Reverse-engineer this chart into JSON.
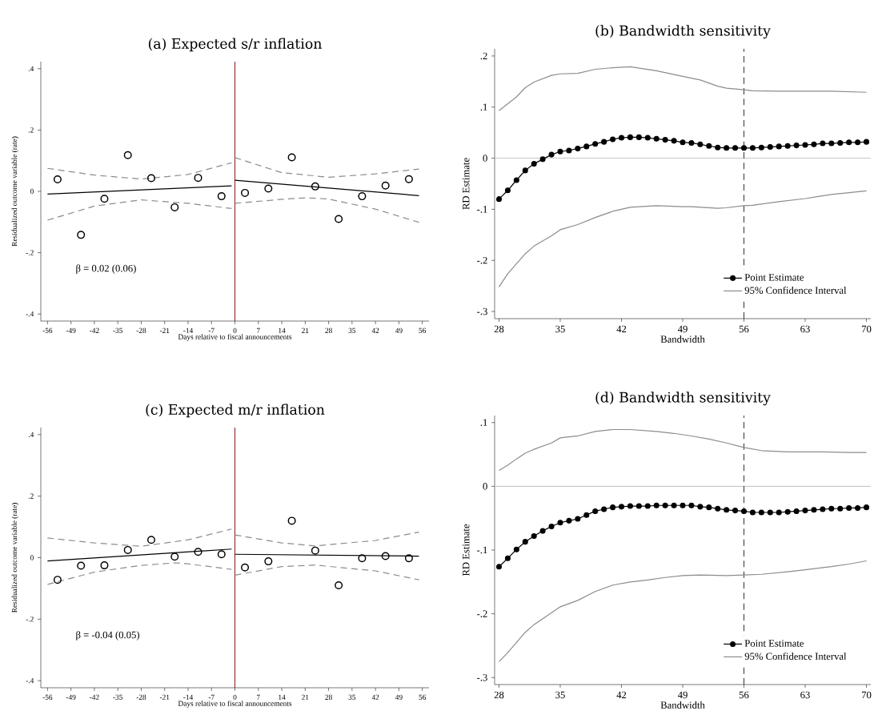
{
  "chart_data": [
    {
      "type": "scatter",
      "title": "(a) Expected s/r inflation",
      "xlabel": "Days relative to fiscal announcements",
      "ylabel": "Residualized outcome variable (rate)",
      "xlim": [
        -58,
        58
      ],
      "ylim": [
        -0.423,
        0.423
      ],
      "xticks": [
        -56,
        -49,
        -42,
        -35,
        -28,
        -21,
        -14,
        -7,
        0,
        7,
        14,
        21,
        28,
        35,
        42,
        49,
        56
      ],
      "yticks": [
        {
          "value": -0.4,
          "label": "-.4"
        },
        {
          "value": -0.2,
          "label": "-.2"
        },
        0,
        {
          "value": 0.2,
          "label": ".2"
        },
        {
          "value": 0.4,
          "label": ".4"
        }
      ],
      "grid": false,
      "legend": false,
      "annotations": [
        "β = 0.02 (0.06)"
      ],
      "ref_lines": [
        {
          "axis": "x",
          "value": 0,
          "color": "#8b2323"
        }
      ],
      "series": [
        {
          "type": "scatter",
          "marker": "circle",
          "color": "#000000",
          "x": [
            -53,
            -46,
            -39,
            -32,
            -25,
            -18,
            -11,
            -4,
            3,
            10,
            17,
            24,
            31,
            38,
            45,
            52
          ],
          "values": [
            0.039,
            -0.142,
            -0.024,
            0.118,
            0.043,
            -0.052,
            0.044,
            -0.016,
            -0.005,
            0.009,
            0.111,
            0.016,
            -0.09,
            -0.016,
            0.019,
            0.04
          ]
        },
        {
          "type": "line",
          "marker": "none",
          "line_style": "solid",
          "color": "#000000",
          "x": [
            -56,
            -1
          ],
          "values": [
            -0.009,
            0.018
          ]
        },
        {
          "type": "line",
          "marker": "none",
          "line_style": "solid",
          "color": "#000000",
          "x": [
            0,
            55
          ],
          "values": [
            0.036,
            -0.014
          ]
        },
        {
          "type": "line",
          "marker": "none",
          "line_style": "dashed",
          "color": "#8c8c8c",
          "x": [
            -56,
            -42,
            -28,
            -14,
            -1
          ],
          "values": [
            0.075,
            0.053,
            0.04,
            0.055,
            0.093
          ]
        },
        {
          "type": "line",
          "marker": "none",
          "line_style": "dashed",
          "color": "#8c8c8c",
          "x": [
            -56,
            -42,
            -28,
            -14,
            -1
          ],
          "values": [
            -0.094,
            -0.048,
            -0.028,
            -0.039,
            -0.056
          ]
        },
        {
          "type": "line",
          "marker": "none",
          "line_style": "dashed",
          "color": "#8c8c8c",
          "x": [
            0,
            14,
            28,
            42,
            55
          ],
          "values": [
            0.11,
            0.061,
            0.046,
            0.057,
            0.073
          ]
        },
        {
          "type": "line",
          "marker": "none",
          "line_style": "dashed",
          "color": "#8c8c8c",
          "x": [
            0,
            14,
            21,
            28,
            42,
            55
          ],
          "values": [
            -0.039,
            -0.026,
            -0.021,
            -0.025,
            -0.058,
            -0.101
          ]
        }
      ]
    },
    {
      "type": "line",
      "title": "(b) Bandwidth sensitivity",
      "xlabel": "Bandwidth",
      "ylabel": "RD Estimate",
      "xlim": [
        27.5,
        70.5
      ],
      "ylim": [
        -0.314,
        0.214
      ],
      "xticks": [
        28,
        35,
        42,
        49,
        56,
        63,
        70
      ],
      "yticks": [
        {
          "value": -0.3,
          "label": "-.3"
        },
        {
          "value": -0.2,
          "label": "-.2"
        },
        {
          "value": -0.1,
          "label": "-.1"
        },
        0,
        {
          "value": 0.1,
          "label": ".1"
        },
        {
          "value": 0.2,
          "label": ".2"
        }
      ],
      "grid": false,
      "legend": "bottom right",
      "ref_lines": [
        {
          "axis": "y",
          "value": 0,
          "color": "#c8c8c8",
          "line_style": "solid"
        },
        {
          "axis": "x",
          "value": 56,
          "color": "#333333",
          "line_style": "dashed"
        }
      ],
      "series": [
        {
          "name": "Point Estimate",
          "marker": "circle",
          "line_style": "solid",
          "color": "#000000",
          "x": [
            28,
            29,
            30,
            31,
            32,
            33,
            34,
            35,
            36,
            37,
            38,
            39,
            40,
            41,
            42,
            43,
            44,
            45,
            46,
            47,
            48,
            49,
            50,
            51,
            52,
            53,
            54,
            55,
            56,
            57,
            58,
            59,
            60,
            61,
            62,
            63,
            64,
            65,
            66,
            67,
            68,
            69,
            70
          ],
          "values": [
            -0.08,
            -0.063,
            -0.043,
            -0.024,
            -0.011,
            -0.002,
            0.007,
            0.013,
            0.015,
            0.019,
            0.023,
            0.028,
            0.032,
            0.037,
            0.04,
            0.041,
            0.041,
            0.04,
            0.038,
            0.036,
            0.034,
            0.031,
            0.03,
            0.027,
            0.024,
            0.021,
            0.02,
            0.02,
            0.02,
            0.02,
            0.021,
            0.022,
            0.023,
            0.024,
            0.025,
            0.026,
            0.027,
            0.029,
            0.029,
            0.03,
            0.031,
            0.031,
            0.032
          ]
        },
        {
          "name": "95% Confidence Interval",
          "marker": "none",
          "line_style": "solid",
          "color": "#8c8c8c",
          "x": [
            28,
            30,
            31,
            32,
            34,
            35,
            37,
            39,
            41,
            43,
            46,
            49,
            51,
            53,
            54,
            56,
            57,
            60,
            63,
            66,
            70
          ],
          "values": [
            0.093,
            0.12,
            0.138,
            0.149,
            0.162,
            0.165,
            0.166,
            0.174,
            0.177,
            0.179,
            0.171,
            0.16,
            0.153,
            0.141,
            0.137,
            0.134,
            0.132,
            0.131,
            0.131,
            0.131,
            0.129
          ]
        },
        {
          "marker": "none",
          "line_style": "solid",
          "color": "#8c8c8c",
          "x": [
            28,
            29,
            31,
            32,
            34,
            35,
            37,
            39,
            41,
            43,
            46,
            49,
            50,
            53,
            54,
            56,
            57,
            60,
            63,
            66,
            70
          ],
          "values": [
            -0.252,
            -0.226,
            -0.187,
            -0.172,
            -0.152,
            -0.14,
            -0.13,
            -0.116,
            -0.104,
            -0.096,
            -0.093,
            -0.095,
            -0.095,
            -0.098,
            -0.097,
            -0.093,
            -0.092,
            -0.085,
            -0.079,
            -0.071,
            -0.064
          ]
        }
      ]
    },
    {
      "type": "scatter",
      "title": "(c) Expected m/r inflation",
      "xlabel": "Days relative to fiscal announcements",
      "ylabel": "Residualized outcome variable (rate)",
      "xlim": [
        -58,
        58
      ],
      "ylim": [
        -0.423,
        0.423
      ],
      "xticks": [
        -56,
        -49,
        -42,
        -35,
        -28,
        -21,
        -14,
        -7,
        0,
        7,
        14,
        21,
        28,
        35,
        42,
        49,
        56
      ],
      "yticks": [
        {
          "value": -0.4,
          "label": "-.4"
        },
        {
          "value": -0.2,
          "label": "-.2"
        },
        0,
        {
          "value": 0.2,
          "label": ".2"
        },
        {
          "value": 0.4,
          "label": ".4"
        }
      ],
      "grid": false,
      "legend": false,
      "annotations": [
        "β = -0.04 (0.05)"
      ],
      "ref_lines": [
        {
          "axis": "x",
          "value": 0,
          "color": "#8b2323"
        }
      ],
      "series": [
        {
          "type": "scatter",
          "marker": "circle",
          "color": "#000000",
          "x": [
            -53,
            -46,
            -39,
            -32,
            -25,
            -18,
            -11,
            -4,
            3,
            10,
            17,
            24,
            31,
            38,
            45,
            52
          ],
          "values": [
            -0.072,
            -0.026,
            -0.025,
            0.025,
            0.058,
            0.003,
            0.019,
            0.011,
            -0.032,
            -0.012,
            0.12,
            0.023,
            -0.09,
            -0.002,
            0.005,
            -0.002
          ]
        },
        {
          "type": "line",
          "marker": "none",
          "line_style": "solid",
          "color": "#000000",
          "x": [
            -56,
            -1
          ],
          "values": [
            -0.011,
            0.028
          ]
        },
        {
          "type": "line",
          "marker": "none",
          "line_style": "solid",
          "color": "#000000",
          "x": [
            0,
            55
          ],
          "values": [
            0.011,
            0.005
          ]
        },
        {
          "type": "line",
          "marker": "none",
          "line_style": "dashed",
          "color": "#8c8c8c",
          "x": [
            -56,
            -42,
            -28,
            -14,
            -1
          ],
          "values": [
            0.064,
            0.048,
            0.037,
            0.058,
            0.093
          ]
        },
        {
          "type": "line",
          "marker": "none",
          "line_style": "dashed",
          "color": "#8c8c8c",
          "x": [
            -56,
            -42,
            -28,
            -18,
            -14,
            -1
          ],
          "values": [
            -0.087,
            -0.047,
            -0.025,
            -0.017,
            -0.02,
            -0.038
          ]
        },
        {
          "type": "line",
          "marker": "none",
          "line_style": "dashed",
          "color": "#8c8c8c",
          "x": [
            0,
            14,
            24,
            42,
            55
          ],
          "values": [
            0.074,
            0.048,
            0.038,
            0.056,
            0.083
          ]
        },
        {
          "type": "line",
          "marker": "none",
          "line_style": "dashed",
          "color": "#8c8c8c",
          "x": [
            0,
            14,
            24,
            42,
            55
          ],
          "values": [
            -0.057,
            -0.029,
            -0.024,
            -0.043,
            -0.072
          ]
        }
      ]
    },
    {
      "type": "line",
      "title": "(d) Bandwidth sensitivity",
      "xlabel": "Bandwidth",
      "ylabel": "RD Estimate",
      "xlim": [
        27.5,
        70.5
      ],
      "ylim": [
        -0.311,
        0.111
      ],
      "xticks": [
        28,
        35,
        42,
        49,
        56,
        63,
        70
      ],
      "yticks": [
        {
          "value": -0.3,
          "label": "-.3"
        },
        {
          "value": -0.2,
          "label": "-.2"
        },
        {
          "value": -0.1,
          "label": "-.1"
        },
        0,
        {
          "value": 0.1,
          "label": ".1"
        }
      ],
      "grid": false,
      "legend": "bottom right",
      "ref_lines": [
        {
          "axis": "y",
          "value": 0,
          "color": "#c8c8c8",
          "line_style": "solid"
        },
        {
          "axis": "x",
          "value": 56,
          "color": "#333333",
          "line_style": "dashed"
        }
      ],
      "series": [
        {
          "name": "Point Estimate",
          "marker": "circle",
          "line_style": "solid",
          "color": "#000000",
          "x": [
            28,
            29,
            30,
            31,
            32,
            33,
            34,
            35,
            36,
            37,
            38,
            39,
            40,
            41,
            42,
            43,
            44,
            45,
            46,
            47,
            48,
            49,
            50,
            51,
            52,
            53,
            54,
            55,
            56,
            57,
            58,
            59,
            60,
            61,
            62,
            63,
            64,
            65,
            66,
            67,
            68,
            69,
            70
          ],
          "values": [
            -0.126,
            -0.113,
            -0.099,
            -0.087,
            -0.078,
            -0.07,
            -0.063,
            -0.057,
            -0.054,
            -0.051,
            -0.045,
            -0.039,
            -0.036,
            -0.033,
            -0.032,
            -0.031,
            -0.031,
            -0.031,
            -0.03,
            -0.03,
            -0.03,
            -0.03,
            -0.03,
            -0.032,
            -0.033,
            -0.035,
            -0.037,
            -0.038,
            -0.039,
            -0.041,
            -0.041,
            -0.041,
            -0.041,
            -0.04,
            -0.039,
            -0.038,
            -0.037,
            -0.036,
            -0.035,
            -0.035,
            -0.034,
            -0.034,
            -0.033
          ]
        },
        {
          "name": "95% Confidence Interval",
          "marker": "none",
          "line_style": "solid",
          "color": "#8c8c8c",
          "x": [
            28,
            29,
            30,
            31,
            32,
            34,
            35,
            37,
            39,
            41,
            43,
            46,
            48,
            50,
            52,
            54,
            56,
            58,
            61,
            65,
            68,
            70
          ],
          "values": [
            0.025,
            0.033,
            0.043,
            0.052,
            0.058,
            0.068,
            0.076,
            0.079,
            0.086,
            0.089,
            0.089,
            0.086,
            0.083,
            0.079,
            0.074,
            0.068,
            0.061,
            0.056,
            0.054,
            0.054,
            0.053,
            0.053
          ]
        },
        {
          "marker": "none",
          "line_style": "solid",
          "color": "#8c8c8c",
          "x": [
            28,
            29,
            31,
            32,
            35,
            37,
            39,
            41,
            43,
            45,
            47,
            49,
            51,
            54,
            56,
            58,
            61,
            63,
            66,
            68,
            70
          ],
          "values": [
            -0.275,
            -0.261,
            -0.229,
            -0.217,
            -0.189,
            -0.179,
            -0.165,
            -0.155,
            -0.15,
            -0.147,
            -0.143,
            -0.14,
            -0.139,
            -0.14,
            -0.139,
            -0.138,
            -0.134,
            -0.131,
            -0.126,
            -0.122,
            -0.117
          ]
        }
      ]
    }
  ]
}
